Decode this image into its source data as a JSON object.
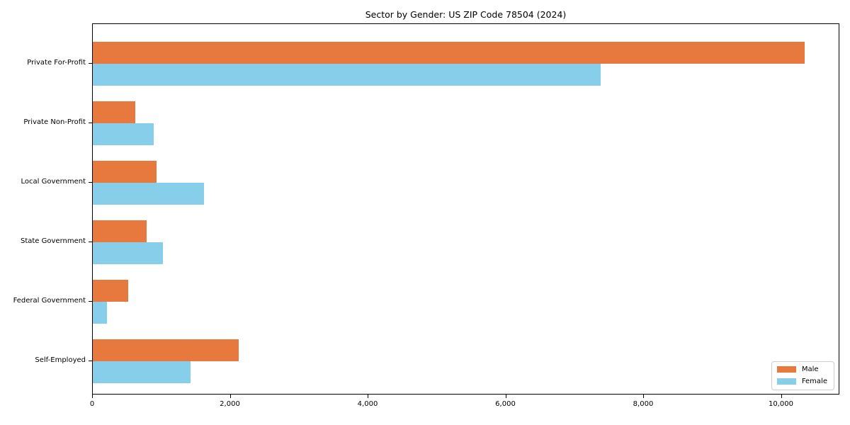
{
  "chart_data": {
    "type": "bar",
    "orientation": "horizontal",
    "title": "Sector by Gender: US ZIP Code 78504 (2024)",
    "categories": [
      "Private For-Profit",
      "Private Non-Profit",
      "Local Government",
      "State Government",
      "Federal Government",
      "Self-Employed"
    ],
    "series": [
      {
        "name": "Male",
        "color": "#E8793E",
        "values": [
          10330,
          615,
          930,
          780,
          515,
          2115
        ]
      },
      {
        "name": "Female",
        "color": "#87CEEB",
        "values": [
          7370,
          880,
          1610,
          1020,
          205,
          1415
        ]
      }
    ],
    "xlim": [
      0,
      10848
    ],
    "xticks": [
      0,
      2000,
      4000,
      6000,
      8000,
      10000
    ],
    "xtick_labels": [
      "0",
      "2,000",
      "4,000",
      "6,000",
      "8,000",
      "10,000"
    ],
    "xlabel": "",
    "ylabel": "",
    "grid": false,
    "legend": {
      "position": "lower-right",
      "entries": [
        "Male",
        "Female"
      ]
    },
    "colors": {
      "background": "#ffffff",
      "spine": "#000000",
      "legend_border": "#cccccc",
      "text": "#000000"
    }
  }
}
